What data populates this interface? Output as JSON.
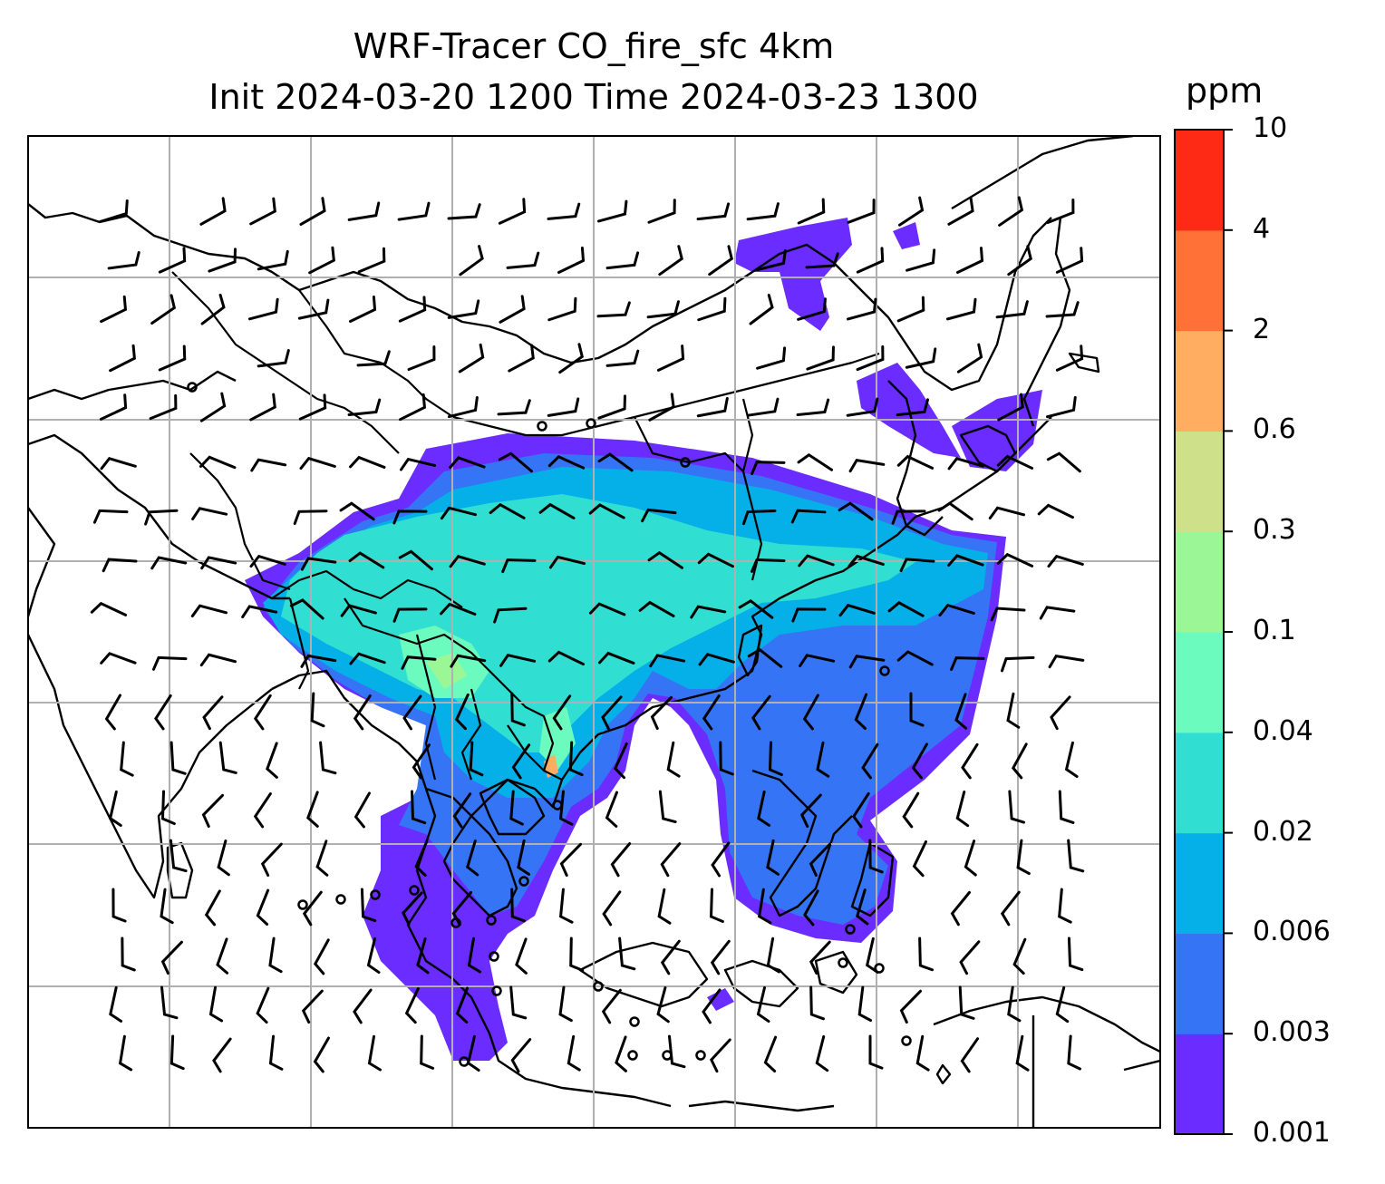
{
  "title": {
    "line1": "WRF-Tracer CO_fire_sfc 4km",
    "line2": "Init 2024-03-20 1200 Time 2024-03-23 1300"
  },
  "colorbar": {
    "unit": "ppm",
    "ticks": [
      "0.001",
      "0.003",
      "0.006",
      "0.02",
      "0.04",
      "0.1",
      "0.3",
      "0.6",
      "2",
      "4",
      "10"
    ],
    "colors": [
      "#6a2cff",
      "#3574f4",
      "#05b0e8",
      "#30dfd1",
      "#6cfbbf",
      "#9bf795",
      "#cfe08b",
      "#ffad61",
      "#ff7137",
      "#ff2a15"
    ]
  },
  "map": {
    "gridlines": true,
    "features": [
      "coastlines",
      "borders",
      "wind-barbs",
      "calm-circles"
    ]
  }
}
